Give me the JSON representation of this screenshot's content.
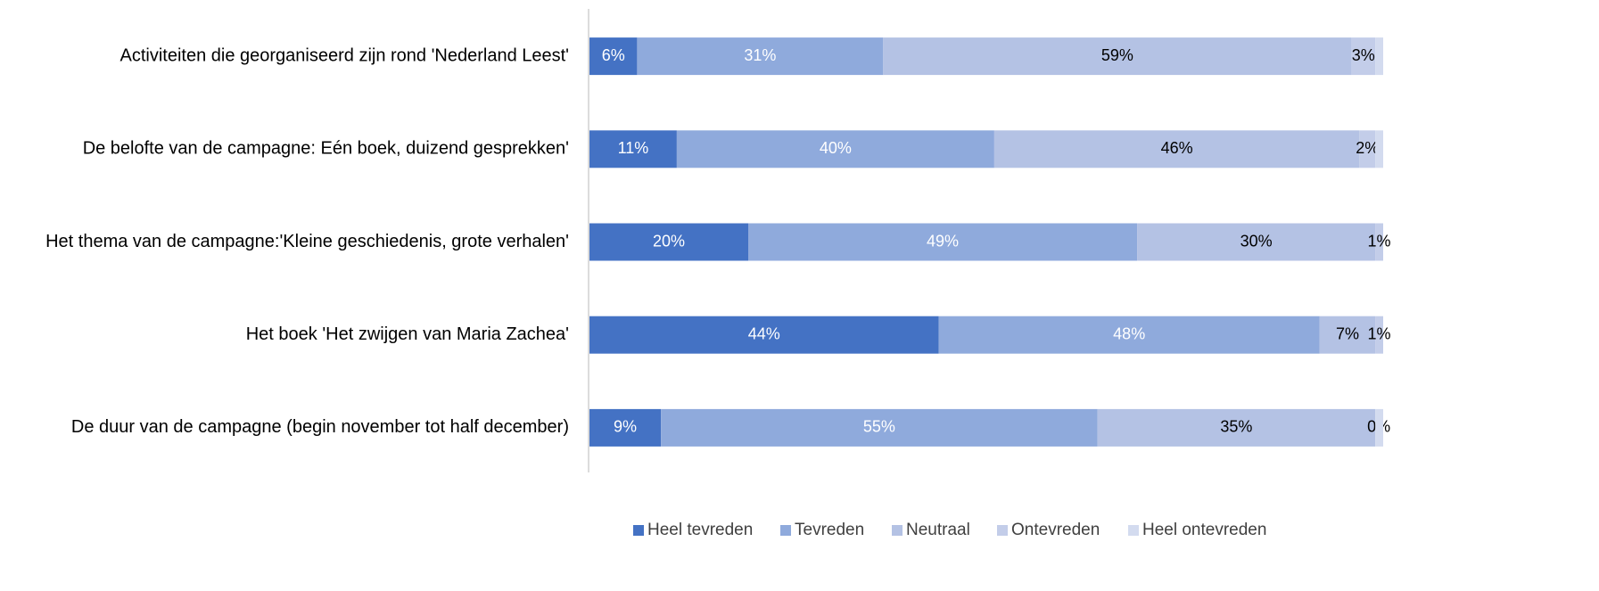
{
  "chart_data": {
    "type": "stacked-bar-horizontal",
    "categories": [
      "Activiteiten die georganiseerd zijn rond 'Nederland Leest'",
      "De belofte van de campagne: Eén boek, duizend gesprekken'",
      "Het thema van de campagne:'Kleine geschiedenis, grote verhalen'",
      "Het boek 'Het zwijgen van Maria Zachea'",
      "De duur van de campagne (begin november tot half december)"
    ],
    "xlim": [
      0,
      100
    ],
    "legend": "bottom",
    "series": [
      {
        "name": "Heel tevreden",
        "color": "#4472c4",
        "label_color": "#ffffff",
        "values": [
          6,
          11,
          20,
          44,
          9
        ],
        "value_labels": [
          "6%",
          "11%",
          "20%",
          "44%",
          "9%"
        ]
      },
      {
        "name": "Tevreden",
        "color": "#8faadc",
        "label_color": "#ffffff",
        "values": [
          31,
          40,
          49,
          48,
          55
        ],
        "value_labels": [
          "31%",
          "40%",
          "49%",
          "48%",
          "55%"
        ]
      },
      {
        "name": "Neutraal",
        "color": "#b4c2e4",
        "label_color": "#000000",
        "values": [
          59,
          46,
          30,
          7,
          35
        ],
        "value_labels": [
          "59%",
          "46%",
          "30%",
          "7%",
          "35%"
        ]
      },
      {
        "name": "Ontevreden",
        "color": "#c3cde9",
        "label_color": "#000000",
        "values": [
          3,
          2,
          1,
          1,
          0
        ],
        "value_labels": [
          "3%",
          "2%",
          "1%",
          "1%",
          "0%"
        ]
      },
      {
        "name": "Heel ontevreden",
        "color": "#d3dbef",
        "label_color": "#000000",
        "values": [
          1,
          1,
          null,
          null,
          1
        ],
        "value_labels": [
          null,
          null,
          null,
          null,
          null
        ]
      }
    ]
  }
}
